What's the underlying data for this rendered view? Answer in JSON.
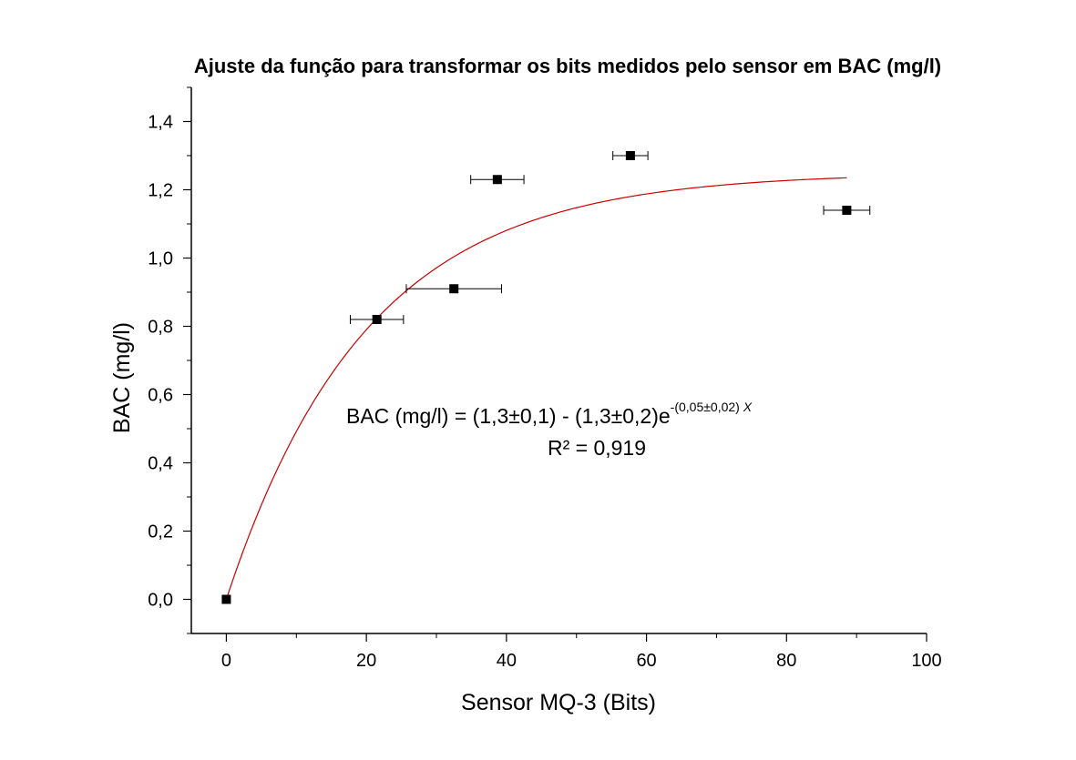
{
  "chart_data": {
    "type": "scatter",
    "title": "Ajuste da função para transformar os bits medidos pelo sensor em BAC (mg/l)",
    "xlabel": "Sensor MQ-3 (Bits)",
    "ylabel": "BAC (mg/l)",
    "xlim": [
      -5,
      100
    ],
    "ylim": [
      -0.1,
      1.5
    ],
    "x_ticks": [
      0,
      20,
      40,
      60,
      80,
      100
    ],
    "x_tick_labels": [
      "0",
      "20",
      "40",
      "60",
      "80",
      "100"
    ],
    "y_ticks": [
      0.0,
      0.2,
      0.4,
      0.6,
      0.8,
      1.0,
      1.2,
      1.4
    ],
    "y_tick_labels": [
      "0,0",
      "0,2",
      "0,4",
      "0,6",
      "0,8",
      "1,0",
      "1,2",
      "1,4"
    ],
    "grid": false,
    "points": [
      {
        "x": 0,
        "y": 0.0,
        "xerr": 0
      },
      {
        "x": 21.5,
        "y": 0.82,
        "xerr": 3.8
      },
      {
        "x": 32.5,
        "y": 0.91,
        "xerr": 6.8
      },
      {
        "x": 38.7,
        "y": 1.23,
        "xerr": 3.8
      },
      {
        "x": 57.7,
        "y": 1.3,
        "xerr": 2.5
      },
      {
        "x": 88.6,
        "y": 1.14,
        "xerr": 3.3
      }
    ],
    "fit": {
      "model": "y = a - b*exp(-c*x)",
      "a": 1.25,
      "b": 1.25,
      "c": 0.05,
      "x_range": [
        0,
        88.6
      ],
      "color": "#cc0000"
    },
    "annotations": {
      "equation_main": "BAC (mg/l) = (1,3±0,1) - (1,3±0,2)e",
      "equation_exponent": "-(0,05±0,02) ",
      "equation_exponent_var": "X",
      "r_squared": "R² = 0,919"
    },
    "colors": {
      "points": "#000000",
      "fit": "#cc0000",
      "axes": "#000000"
    }
  }
}
